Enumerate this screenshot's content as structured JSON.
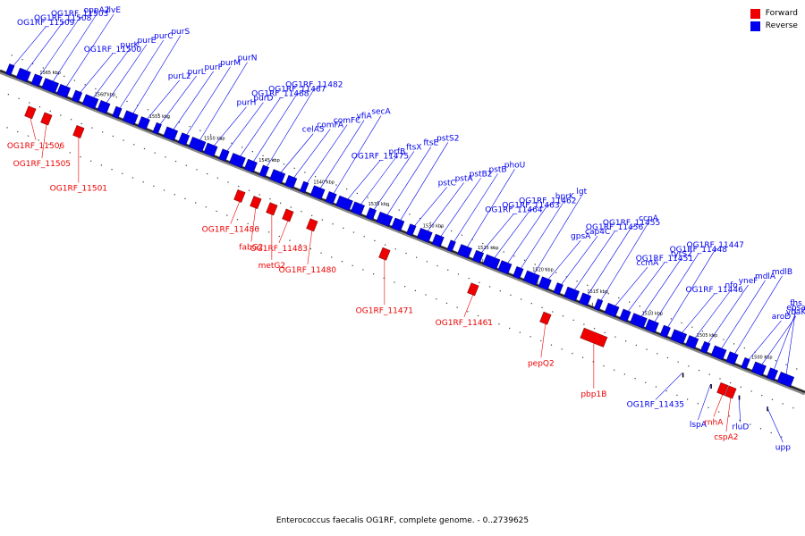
{
  "legend": {
    "forward_label": "Forward",
    "reverse_label": "Reverse",
    "forward_color": "#ee0000",
    "reverse_color": "#0000ee"
  },
  "caption": "Enterococcus faecalis OG1RF, complete genome. - 0..2739625",
  "axis": {
    "ticks": [
      "1565 kbp",
      "1560 kbp",
      "1555 kbp",
      "1550 kbp",
      "1545 kbp",
      "1540 kbp",
      "1535 kbp",
      "1530 kbp",
      "1525 kbp",
      "1520 kbp",
      "1515 kbp",
      "1510 kbp",
      "1505 kbp",
      "1500 kbp"
    ]
  },
  "reverse_genes": [
    {
      "label": "OG1RF_11509"
    },
    {
      "label": "OG1RF_11508"
    },
    {
      "label": "OG1RF_11503"
    },
    {
      "label": "oppA2"
    },
    {
      "label": "ilvE"
    },
    {
      "label": "OG1RF_11500"
    },
    {
      "label": "purK"
    },
    {
      "label": "purE"
    },
    {
      "label": "purC"
    },
    {
      "label": "purS"
    },
    {
      "label": "purL2"
    },
    {
      "label": "purL"
    },
    {
      "label": "purF"
    },
    {
      "label": "purM"
    },
    {
      "label": "purN"
    },
    {
      "label": "purH"
    },
    {
      "label": "purD"
    },
    {
      "label": "OG1RF_11488"
    },
    {
      "label": "OG1RF_11487"
    },
    {
      "label": "OG1RF_11482"
    },
    {
      "label": "celA5"
    },
    {
      "label": "comFA"
    },
    {
      "label": "comFC"
    },
    {
      "label": "yfiA"
    },
    {
      "label": "secA"
    },
    {
      "label": "OG1RF_11475"
    },
    {
      "label": "prfB"
    },
    {
      "label": "ftsX"
    },
    {
      "label": "ftsE"
    },
    {
      "label": "pstS2"
    },
    {
      "label": "pstC"
    },
    {
      "label": "pstA"
    },
    {
      "label": "pstB2"
    },
    {
      "label": "pstB"
    },
    {
      "label": "phoU"
    },
    {
      "label": "OG1RF_11464"
    },
    {
      "label": "OG1RF_11463"
    },
    {
      "label": "OG1RF_11462"
    },
    {
      "label": "hprK"
    },
    {
      "label": "lgt"
    },
    {
      "label": "gpsA"
    },
    {
      "label": "cap4C"
    },
    {
      "label": "OG1RF_11456"
    },
    {
      "label": "OG1RF_11455"
    },
    {
      "label": "ccpA"
    },
    {
      "label": "ccmA"
    },
    {
      "label": "OG1RF_11451"
    },
    {
      "label": "tyrS2"
    },
    {
      "label": "OG1RF_11448"
    },
    {
      "label": "OG1RF_11447"
    },
    {
      "label": "OG1RF_11446"
    },
    {
      "label": "nfo"
    },
    {
      "label": "yneF"
    },
    {
      "label": "mdlA"
    },
    {
      "label": "mdlB"
    },
    {
      "label": "aroD"
    },
    {
      "label": "ybaK"
    },
    {
      "label": "ebsa"
    },
    {
      "label": "fhs"
    },
    {
      "label": "OG1RF_11435"
    },
    {
      "label": "lspA"
    },
    {
      "label": "rluD"
    },
    {
      "label": "upp"
    }
  ],
  "forward_genes": [
    {
      "label": "OG1RF_11506"
    },
    {
      "label": "OG1RF_11505"
    },
    {
      "label": "OG1RF_11501"
    },
    {
      "label": "OG1RF_11486"
    },
    {
      "label": "fabG2"
    },
    {
      "label": "metG2"
    },
    {
      "label": "OG1RF_11483"
    },
    {
      "label": "OG1RF_11480"
    },
    {
      "label": "OG1RF_11471"
    },
    {
      "label": "OG1RF_11461"
    },
    {
      "label": "pepQ2"
    },
    {
      "label": "pbp1B"
    },
    {
      "label": "rnhA"
    },
    {
      "label": "cspA2"
    }
  ]
}
